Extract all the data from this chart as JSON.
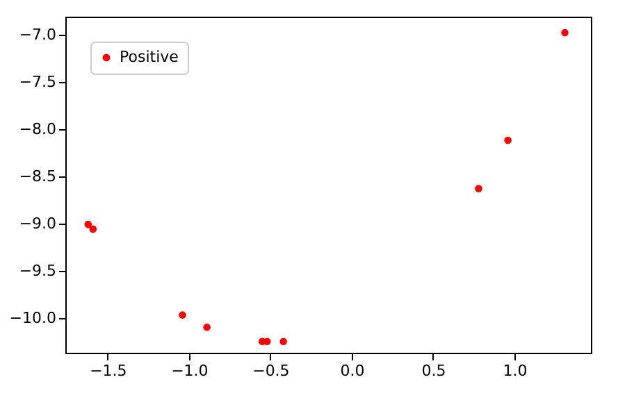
{
  "chart_data": {
    "type": "scatter",
    "series": [
      {
        "name": "Positive",
        "color": "#ff0000",
        "x": [
          -1.62,
          -1.59,
          -1.04,
          -0.89,
          -0.55,
          -0.52,
          -0.42,
          0.78,
          0.96,
          1.31
        ],
        "values": [
          -9.01,
          -9.06,
          -9.97,
          -10.1,
          -10.25,
          -10.25,
          -10.25,
          -8.63,
          -8.12,
          -6.98
        ]
      }
    ],
    "xlim": [
      -1.76,
      1.47
    ],
    "ylim": [
      -10.37,
      -6.81
    ],
    "xticks": [
      {
        "value": -1.5,
        "label": "−1.5"
      },
      {
        "value": -1.0,
        "label": "−1.0"
      },
      {
        "value": -0.5,
        "label": "−0.5"
      },
      {
        "value": 0.0,
        "label": "0.0"
      },
      {
        "value": 0.5,
        "label": "0.5"
      },
      {
        "value": 1.0,
        "label": "1.0"
      }
    ],
    "yticks": [
      {
        "value": -10.0,
        "label": "−10.0"
      },
      {
        "value": -9.5,
        "label": "−9.5"
      },
      {
        "value": -9.0,
        "label": "−9.0"
      },
      {
        "value": -8.5,
        "label": "−8.5"
      },
      {
        "value": -8.0,
        "label": "−8.0"
      },
      {
        "value": -7.5,
        "label": "−7.5"
      },
      {
        "value": -7.0,
        "label": "−7.0"
      }
    ],
    "grid": false,
    "legend": "top left",
    "marker": "circle"
  }
}
